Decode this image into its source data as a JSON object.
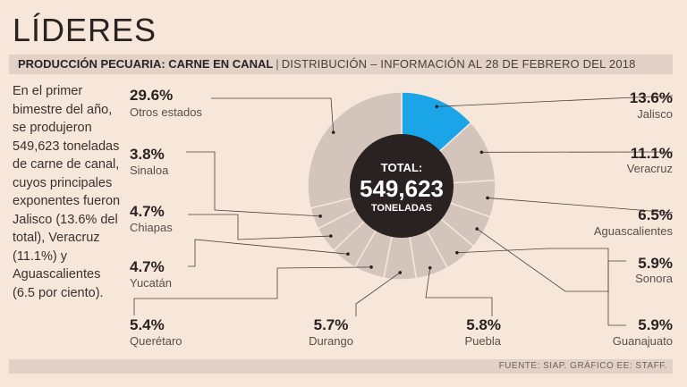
{
  "header": {
    "title": "LÍDERES",
    "subtitle_strong": "PRODUCCIÓN PECUARIA: CARNE EN CANAL",
    "subtitle_sep": "|",
    "subtitle_light": "DISTRIBUCIÓN – INFORMACIÓN AL 28 DE FEBRERO DEL 2018"
  },
  "intro_text": "En el primer bimestre del año, se produjeron 549,623 toneladas de carne de canal, cuyos principales exponentes fueron Jalisco (13.6% del total), Veracruz (11.1%) y Aguascalientes (6.5 por ciento).",
  "footer": "FUENTE: SIAP. GRÁFICO EE: STAFF.",
  "colors": {
    "background": "#f7e6da",
    "band": "#e2d1c6",
    "highlight": "#1aa5e8",
    "slice": "#d3c5bb",
    "slice_stroke": "#f7e6da",
    "center": "#2a2220",
    "leader": "#4a403a"
  },
  "chart_data": {
    "type": "pie",
    "style": "donut",
    "center_label": {
      "top": "TOTAL:",
      "value": "549,623",
      "bottom": "TONELADAS"
    },
    "unit": "%",
    "slices": [
      {
        "name": "Jalisco",
        "value": 13.6,
        "label": "13.6%",
        "highlight": true
      },
      {
        "name": "Veracruz",
        "value": 11.1,
        "label": "11.1%"
      },
      {
        "name": "Aguascalientes",
        "value": 6.5,
        "label": "6.5%"
      },
      {
        "name": "Sonora",
        "value": 5.9,
        "label": "5.9%"
      },
      {
        "name": "Guanajuato",
        "value": 5.9,
        "label": "5.9%"
      },
      {
        "name": "Puebla",
        "value": 5.8,
        "label": "5.8%"
      },
      {
        "name": "Durango",
        "value": 5.7,
        "label": "5.7%"
      },
      {
        "name": "Querétaro",
        "value": 5.4,
        "label": "5.4%"
      },
      {
        "name": "Yucatán",
        "value": 4.7,
        "label": "4.7%"
      },
      {
        "name": "Chiapas",
        "value": 4.7,
        "label": "4.7%"
      },
      {
        "name": "Sinaloa",
        "value": 3.8,
        "label": "3.8%"
      },
      {
        "name": "Otros estados",
        "value": 29.6,
        "label": "29.6%"
      }
    ]
  }
}
